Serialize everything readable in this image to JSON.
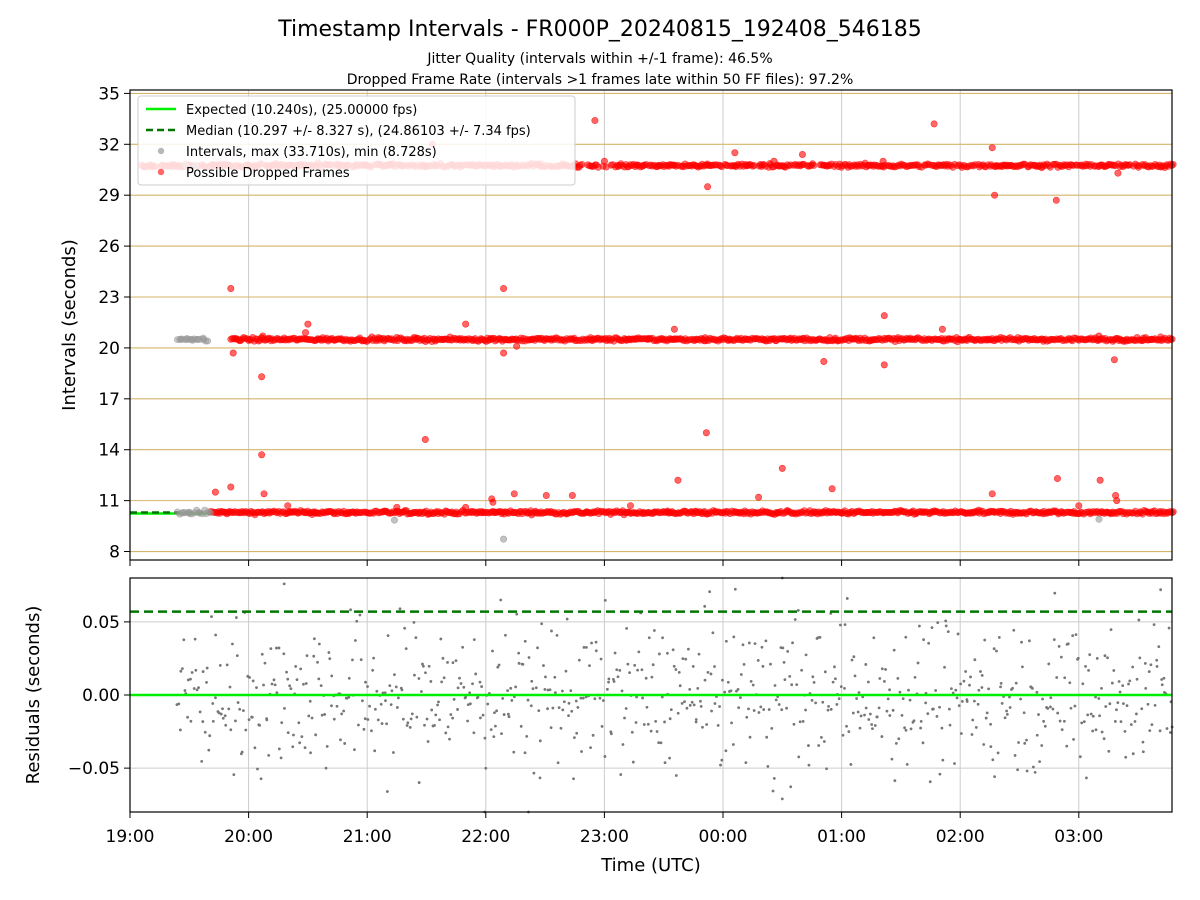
{
  "title": "Timestamp Intervals - FR000P_20240815_192408_546185",
  "subtitle_1": "Jitter Quality (intervals within +/-1 frame): 46.5%",
  "subtitle_2": "Dropped Frame Rate (intervals >1 frames late within 50 FF files): 97.2%",
  "colors": {
    "expected": "#00ee00",
    "median": "#007700",
    "intervals": "#999999",
    "dropped": "#ff0000",
    "hgrid_top": "#d4b56a",
    "grid": "#cccccc",
    "residual_points": "#777777"
  },
  "chart_data": [
    {
      "type": "scatter",
      "panel": "top",
      "xlabel": "",
      "ylabel": "Intervals (seconds)",
      "ylim": [
        7.5,
        35.2
      ],
      "yticks": [
        8,
        11,
        14,
        17,
        20,
        23,
        26,
        29,
        32,
        35
      ],
      "xlim": [
        0.0,
        8.8
      ],
      "x_unit": "hours after 19:00 UTC",
      "xtick_labels": [
        "19:00",
        "20:00",
        "21:00",
        "22:00",
        "23:00",
        "00:00",
        "01:00",
        "02:00",
        "03:00"
      ],
      "legend": {
        "placement": "upper-left",
        "entries": [
          "Expected (10.240s), (25.00000 fps)",
          "Median (10.297 +/- 8.327 s), (24.86103 +/- 7.34 fps)",
          "Intervals, max (33.710s), min (8.728s)",
          "Possible Dropped Frames"
        ]
      },
      "expected_line": {
        "y": 10.24,
        "x_range": [
          0.0,
          0.68
        ]
      },
      "median_line": {
        "y": 10.297,
        "x_range": [
          0.0,
          0.68
        ]
      },
      "bands": [
        {
          "series": "Possible Dropped Frames",
          "y": 10.3,
          "x_range": [
            0.68,
            8.8
          ]
        },
        {
          "series": "Possible Dropped Frames",
          "y": 20.5,
          "x_range": [
            0.85,
            8.8
          ]
        },
        {
          "series": "Possible Dropped Frames",
          "y": 30.75,
          "x_range": [
            0.1,
            8.8
          ]
        },
        {
          "series": "Intervals",
          "y": 10.3,
          "x_range": [
            0.4,
            0.68
          ]
        },
        {
          "series": "Intervals",
          "y": 20.5,
          "x_range": [
            0.4,
            0.68
          ]
        }
      ],
      "series": [
        {
          "name": "Intervals, max (33.710s), min (8.728s)",
          "points": [
            [
              0.43,
              20.5
            ],
            [
              0.48,
              20.5
            ],
            [
              0.52,
              20.5
            ],
            [
              0.57,
              20.5
            ],
            [
              0.62,
              20.5
            ],
            [
              0.45,
              10.3
            ],
            [
              0.5,
              10.25
            ],
            [
              0.58,
              10.3
            ],
            [
              2.23,
              9.85
            ],
            [
              3.15,
              8.73
            ],
            [
              8.17,
              9.9
            ],
            [
              0.47,
              30.75
            ],
            [
              0.55,
              30.75
            ]
          ]
        },
        {
          "name": "Possible Dropped Frames",
          "points": [
            [
              0.85,
              23.5
            ],
            [
              0.87,
              19.7
            ],
            [
              0.85,
              11.8
            ],
            [
              0.72,
              11.5
            ],
            [
              1.11,
              18.3
            ],
            [
              1.11,
              13.7
            ],
            [
              1.13,
              11.4
            ],
            [
              1.12,
              20.7
            ],
            [
              1.33,
              10.7
            ],
            [
              1.48,
              20.9
            ],
            [
              1.5,
              21.4
            ],
            [
              2.25,
              10.6
            ],
            [
              2.49,
              14.6
            ],
            [
              2.83,
              21.4
            ],
            [
              2.83,
              10.6
            ],
            [
              3.05,
              11.1
            ],
            [
              3.06,
              10.9
            ],
            [
              3.15,
              19.7
            ],
            [
              3.15,
              23.5
            ],
            [
              3.26,
              20.1
            ],
            [
              3.24,
              11.4
            ],
            [
              3.51,
              11.3
            ],
            [
              3.73,
              11.3
            ],
            [
              3.92,
              33.4
            ],
            [
              4.0,
              31.0
            ],
            [
              4.22,
              10.7
            ],
            [
              4.59,
              21.1
            ],
            [
              4.62,
              12.2
            ],
            [
              4.86,
              15.0
            ],
            [
              4.85,
              20.6
            ],
            [
              4.87,
              29.5
            ],
            [
              5.1,
              31.5
            ],
            [
              5.3,
              11.2
            ],
            [
              5.43,
              31.0
            ],
            [
              5.5,
              12.9
            ],
            [
              5.67,
              31.4
            ],
            [
              5.85,
              19.2
            ],
            [
              5.92,
              11.7
            ],
            [
              6.35,
              31.0
            ],
            [
              6.36,
              19.0
            ],
            [
              6.36,
              21.9
            ],
            [
              6.78,
              33.2
            ],
            [
              6.85,
              21.1
            ],
            [
              7.27,
              31.8
            ],
            [
              7.29,
              29.0
            ],
            [
              7.27,
              11.4
            ],
            [
              7.81,
              28.7
            ],
            [
              7.82,
              12.3
            ],
            [
              8.0,
              10.7
            ],
            [
              8.18,
              12.2
            ],
            [
              8.17,
              20.7
            ],
            [
              8.3,
              19.3
            ],
            [
              8.31,
              11.3
            ],
            [
              8.32,
              11.0
            ],
            [
              8.33,
              30.3
            ],
            [
              2.55,
              32.0
            ]
          ]
        }
      ]
    },
    {
      "type": "scatter",
      "panel": "bottom",
      "xlabel": "Time (UTC)",
      "ylabel": "Residuals (seconds)",
      "ylim": [
        -0.08,
        0.08
      ],
      "yticks": [
        -0.05,
        0.0,
        0.05
      ],
      "ytick_labels": [
        "−0.05",
        "0.00",
        "0.05"
      ],
      "xlim": [
        0.0,
        8.8
      ],
      "x_unit": "hours after 19:00 UTC",
      "xtick_labels": [
        "19:00",
        "20:00",
        "21:00",
        "22:00",
        "23:00",
        "00:00",
        "01:00",
        "02:00",
        "03:00"
      ],
      "zero_line": {
        "y": 0.0
      },
      "median_line": {
        "y": 0.057
      },
      "residuals": {
        "x_range": [
          0.4,
          8.8
        ],
        "y_spread": [
          -0.08,
          0.075
        ],
        "points_per_hour": 95,
        "notable_points": [
          [
            1.3,
            0.076
          ],
          [
            2.17,
            -0.066
          ],
          [
            2.99,
            -0.08
          ],
          [
            3.36,
            -0.08
          ],
          [
            5.5,
            0.08
          ],
          [
            5.5,
            -0.071
          ],
          [
            8.69,
            0.072
          ]
        ]
      }
    }
  ]
}
